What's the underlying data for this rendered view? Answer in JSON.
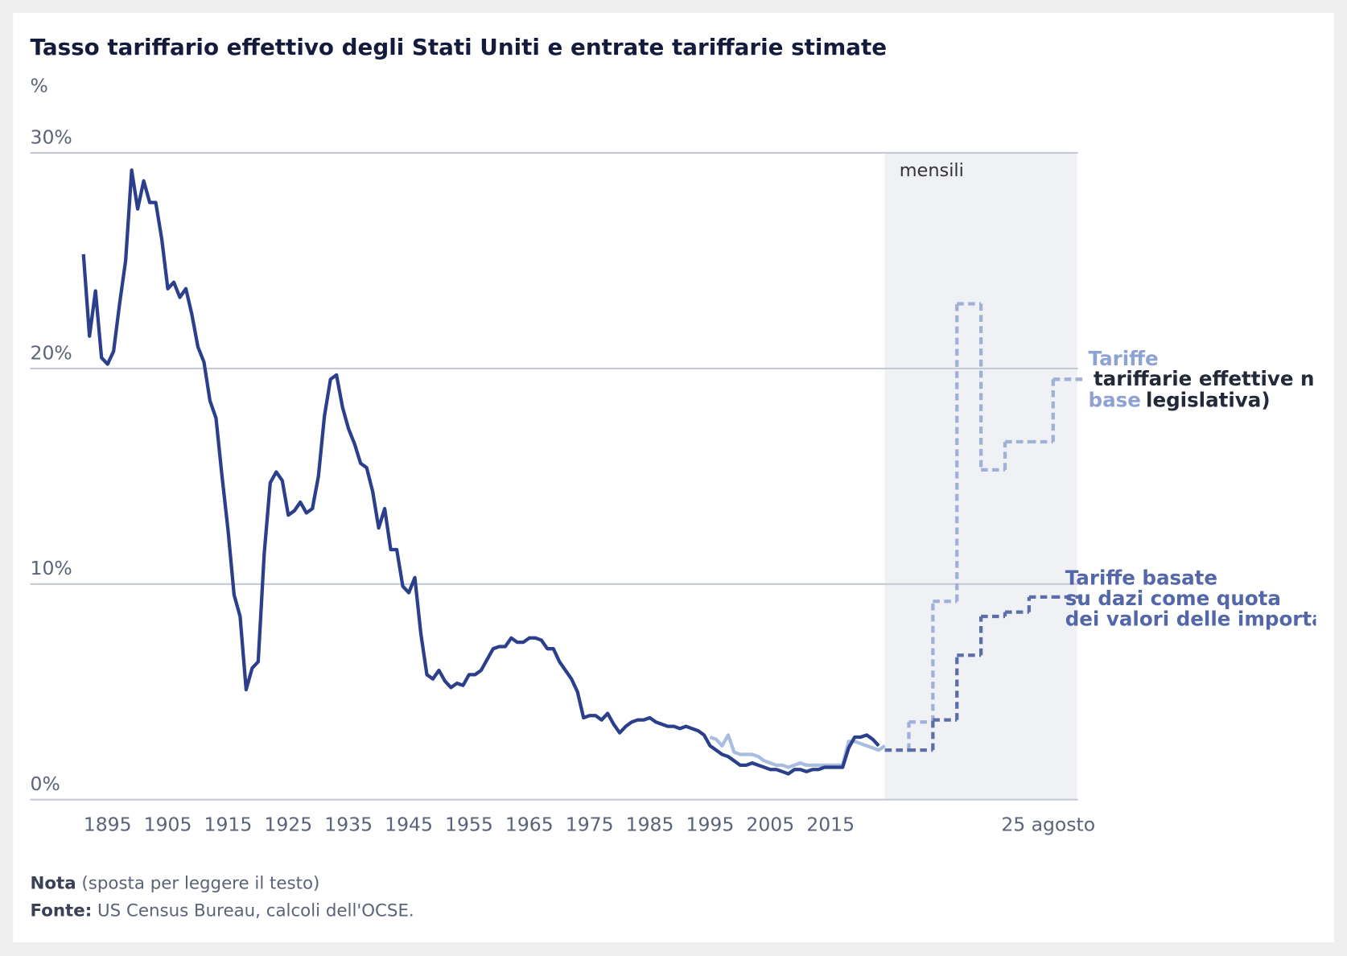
{
  "chart_data": [
    {
      "type": "line",
      "title": "Tasso tariffario effettivo degli Stati Uniti e entrate tariffarie stimate",
      "y_label": "%",
      "ylim": [
        0,
        30
      ],
      "yticks": [
        {
          "value": 0,
          "label": "0%"
        },
        {
          "value": 10,
          "label": "10%"
        },
        {
          "value": 20,
          "label": "20%"
        },
        {
          "value": 30,
          "label": "30%"
        }
      ],
      "grid": true,
      "xlim": [
        1891,
        2024
      ],
      "xticks": [
        1895,
        1905,
        1915,
        1925,
        1935,
        1945,
        1955,
        1965,
        1975,
        1985,
        1995,
        2005,
        2015
      ],
      "x": [
        1891,
        1892,
        1893,
        1894,
        1895,
        1896,
        1897,
        1898,
        1899,
        1900,
        1901,
        1902,
        1903,
        1904,
        1905,
        1906,
        1907,
        1908,
        1909,
        1910,
        1911,
        1912,
        1913,
        1914,
        1915,
        1916,
        1917,
        1918,
        1919,
        1920,
        1921,
        1922,
        1923,
        1924,
        1925,
        1926,
        1927,
        1928,
        1929,
        1930,
        1931,
        1932,
        1933,
        1934,
        1935,
        1936,
        1937,
        1938,
        1939,
        1940,
        1941,
        1942,
        1943,
        1944,
        1945,
        1946,
        1947,
        1948,
        1949,
        1950,
        1951,
        1952,
        1953,
        1954,
        1955,
        1956,
        1957,
        1958,
        1959,
        1960,
        1961,
        1962,
        1963,
        1964,
        1965,
        1966,
        1967,
        1968,
        1969,
        1970,
        1971,
        1972,
        1973,
        1974,
        1975,
        1976,
        1977,
        1978,
        1979,
        1980,
        1981,
        1982,
        1983,
        1984,
        1985,
        1986,
        1987,
        1988,
        1989,
        1990,
        1991,
        1992,
        1993,
        1994,
        1995,
        1996,
        1997,
        1998,
        1999,
        2000,
        2001,
        2002,
        2003,
        2004,
        2005,
        2006,
        2007,
        2008,
        2009,
        2010,
        2011,
        2012,
        2013,
        2014,
        2015,
        2016,
        2017,
        2018,
        2019,
        2020,
        2021,
        2022,
        2023,
        2024
      ],
      "series": [
        {
          "color": "#2b3f8c",
          "values": [
            25.3,
            21.5,
            23.6,
            20.5,
            20.2,
            20.8,
            23.0,
            25.0,
            29.2,
            27.4,
            28.7,
            27.7,
            27.7,
            26.0,
            23.7,
            24.0,
            23.3,
            23.7,
            22.5,
            21.0,
            20.3,
            18.5,
            17.7,
            15.0,
            12.5,
            9.5,
            8.5,
            5.1,
            6.1,
            6.4,
            11.4,
            14.7,
            15.2,
            14.8,
            13.2,
            13.4,
            13.8,
            13.3,
            13.5,
            15.0,
            17.8,
            19.5,
            19.7,
            18.2,
            17.2,
            16.5,
            15.6,
            15.4,
            14.3,
            12.6,
            13.5,
            11.6,
            11.6,
            9.9,
            9.6,
            10.3,
            7.7,
            5.8,
            5.6,
            6.0,
            5.5,
            5.2,
            5.4,
            5.3,
            5.8,
            5.8,
            6.0,
            6.5,
            7.0,
            7.1,
            7.1,
            7.5,
            7.3,
            7.3,
            7.5,
            7.5,
            7.4,
            7.0,
            7.0,
            6.4,
            6.0,
            5.6,
            5.0,
            3.8,
            3.9,
            3.9,
            3.7,
            4.0,
            3.5,
            3.1,
            3.4,
            3.6,
            3.7,
            3.7,
            3.8,
            3.6,
            3.5,
            3.4,
            3.4,
            3.3,
            3.4,
            3.3,
            3.2,
            3.0,
            2.5,
            2.3,
            2.1,
            2.0,
            1.8,
            1.6,
            1.6,
            1.7,
            1.6,
            1.5,
            1.4,
            1.4,
            1.3,
            1.2,
            1.4,
            1.4,
            1.3,
            1.4,
            1.4,
            1.5,
            1.5,
            1.5,
            1.5,
            2.4,
            2.9,
            2.9,
            3.0,
            2.8,
            2.5,
            null
          ]
        },
        {
          "color": "#a9bde0",
          "x": [
            1995,
            1996,
            1997,
            1998,
            1999,
            2000,
            2001,
            2002,
            2003,
            2004,
            2005,
            2006,
            2007,
            2008,
            2009,
            2010,
            2011,
            2012,
            2013,
            2014,
            2015,
            2016,
            2017,
            2018,
            2019,
            2020,
            2021,
            2022,
            2023,
            2024
          ],
          "values": [
            2.9,
            2.8,
            2.5,
            3.0,
            2.2,
            2.1,
            2.1,
            2.1,
            2.0,
            1.8,
            1.7,
            1.6,
            1.6,
            1.5,
            1.6,
            1.7,
            1.6,
            1.6,
            1.6,
            1.6,
            1.6,
            1.6,
            1.6,
            2.7,
            2.7,
            2.6,
            2.5,
            2.4,
            2.3,
            2.5
          ]
        }
      ]
    },
    {
      "type": "step",
      "panel_label": "mensili",
      "ylim": [
        0,
        30
      ],
      "categories": [
        null,
        null,
        null,
        null,
        null,
        null,
        null,
        "25 agosto"
      ],
      "series": [
        {
          "name_lines": [
            "Tariffe",
            "tariffarie effettive n",
            "base",
            "legislativa)"
          ],
          "color": "#9fb0d9",
          "values": [
            2.3,
            3.6,
            9.2,
            23.0,
            15.3,
            16.6,
            16.6,
            19.5
          ]
        },
        {
          "name_lines": [
            "Tariffe basate",
            "su dazi come quota",
            "dei valori delle importa"
          ],
          "color": "#5c6ea8",
          "values": [
            2.3,
            2.3,
            3.7,
            6.7,
            8.5,
            8.7,
            9.4,
            9.4
          ]
        }
      ]
    }
  ],
  "footer": {
    "note_label": "Nota",
    "note_text": "(sposta per leggere il testo)",
    "source_label": "Fonte:",
    "source_text": "US Census Bureau, calcoli dell'OCSE."
  }
}
